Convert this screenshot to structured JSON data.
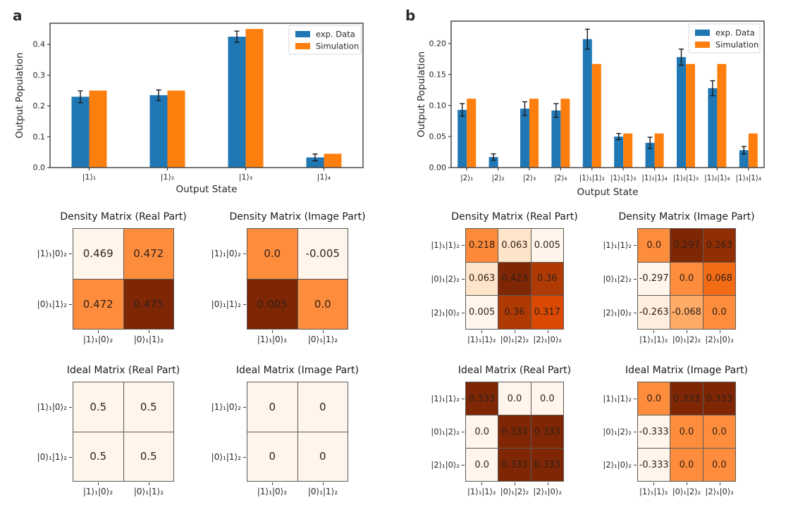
{
  "figure": {
    "background": "#ffffff"
  },
  "panel_labels": [
    "a",
    "b"
  ],
  "colors": {
    "exp_data": "#1f77b4",
    "simulation": "#ff7f0e",
    "error_bar": "#1a1a1a",
    "spine": "#3c3c3c",
    "cell_text": "#33201a",
    "matrix_grid_line": "#5a5a5a",
    "legend_border": "#d9d9d9",
    "colormap_low": "#fff5eb",
    "colormap_high": "#7f2704"
  },
  "chart_data": [
    {
      "id": "bars-a",
      "type": "bar",
      "panel": "a",
      "title": "",
      "xlabel": "Output State",
      "ylabel": "Output Population",
      "categories": [
        "|1⟩₁",
        "|1⟩₂",
        "|1⟩₃",
        "|1⟩₄"
      ],
      "series": [
        {
          "name": "exp. Data",
          "color": "#1f77b4",
          "values": [
            0.23,
            0.235,
            0.425,
            0.033
          ],
          "errors": [
            0.019,
            0.017,
            0.018,
            0.011
          ]
        },
        {
          "name": "Simulation",
          "color": "#ff7f0e",
          "values": [
            0.25,
            0.25,
            0.45,
            0.045
          ]
        }
      ],
      "ylim": [
        0,
        0.4686
      ],
      "yticks": [
        0.0,
        0.1,
        0.2,
        0.3,
        0.4
      ],
      "ytick_labels": [
        "0.0",
        "0.1",
        "0.2",
        "0.3",
        "0.4"
      ],
      "legend_position": "upper right",
      "grid": false
    },
    {
      "id": "bars-b",
      "type": "bar",
      "panel": "b",
      "title": "",
      "xlabel": "Output State",
      "ylabel": "Output Population",
      "categories": [
        "|2⟩₁",
        "|2⟩₂",
        "|2⟩₃",
        "|2⟩₄",
        "|1⟩₁|1⟩₂",
        "|1⟩₁|1⟩₃",
        "|1⟩₁|1⟩₄",
        "|1⟩₂|1⟩₃",
        "|1⟩₂|1⟩₄",
        "|1⟩₃|1⟩₄"
      ],
      "series": [
        {
          "name": "exp. Data",
          "color": "#1f77b4",
          "values": [
            0.093,
            0.017,
            0.095,
            0.092,
            0.207,
            0.05,
            0.04,
            0.178,
            0.128,
            0.028
          ],
          "errors": [
            0.01,
            0.005,
            0.011,
            0.011,
            0.016,
            0.005,
            0.009,
            0.013,
            0.012,
            0.006
          ]
        },
        {
          "name": "Simulation",
          "color": "#ff7f0e",
          "values": [
            0.111,
            0.0,
            0.111,
            0.111,
            0.167,
            0.055,
            0.055,
            0.167,
            0.167,
            0.055
          ]
        }
      ],
      "ylim": [
        0,
        0.236
      ],
      "yticks": [
        0.0,
        0.05,
        0.1,
        0.15,
        0.2
      ],
      "ytick_labels": [
        "0.00",
        "0.05",
        "0.10",
        "0.15",
        "0.20"
      ],
      "legend_position": "upper right",
      "grid": false
    },
    {
      "id": "a-density-real",
      "type": "heatmap",
      "panel": "a",
      "title": "Density Matrix (Real Part)",
      "colormap": "Oranges",
      "rows": [
        "|1⟩₁|0⟩₂",
        "|0⟩₁|1⟩₂"
      ],
      "cols": [
        "|1⟩₁|0⟩₂",
        "|0⟩₁|1⟩₂"
      ],
      "values": [
        [
          "0.469",
          "0.472"
        ],
        [
          "0.472",
          "0.475"
        ]
      ]
    },
    {
      "id": "a-density-imag",
      "type": "heatmap",
      "panel": "a",
      "title": "Density Matrix (Image Part)",
      "colormap": "Oranges",
      "rows": [
        "|1⟩₁|0⟩₂",
        "|0⟩₁|1⟩₂"
      ],
      "cols": [
        "|1⟩₁|0⟩₂",
        "|0⟩₁|1⟩₂"
      ],
      "values": [
        [
          "0.0",
          "-0.005"
        ],
        [
          "0.005",
          "0.0"
        ]
      ]
    },
    {
      "id": "a-ideal-real",
      "type": "heatmap",
      "panel": "a",
      "title": "Ideal Matrix (Real Part)",
      "colormap": "Oranges",
      "rows": [
        "|1⟩₁|0⟩₂",
        "|0⟩₁|1⟩₂"
      ],
      "cols": [
        "|1⟩₁|0⟩₂",
        "|0⟩₁|1⟩₂"
      ],
      "values": [
        [
          "0.5",
          "0.5"
        ],
        [
          "0.5",
          "0.5"
        ]
      ]
    },
    {
      "id": "a-ideal-imag",
      "type": "heatmap",
      "panel": "a",
      "title": "Ideal Matrix (Image Part)",
      "colormap": "Oranges",
      "rows": [
        "|1⟩₁|0⟩₂",
        "|0⟩₁|1⟩₂"
      ],
      "cols": [
        "|1⟩₁|0⟩₂",
        "|0⟩₁|1⟩₂"
      ],
      "values": [
        [
          "0",
          "0"
        ],
        [
          "0",
          "0"
        ]
      ]
    },
    {
      "id": "b-density-real",
      "type": "heatmap",
      "panel": "b",
      "title": "Density Matrix (Real Part)",
      "colormap": "Oranges",
      "rows": [
        "|1⟩₁|1⟩₂",
        "|0⟩₁|2⟩₂",
        "|2⟩₁|0⟩₂"
      ],
      "cols": [
        "|1⟩₁|1⟩₂",
        "|0⟩₁|2⟩₂",
        "|2⟩₁|0⟩₂"
      ],
      "values": [
        [
          "0.218",
          "0.063",
          "0.005"
        ],
        [
          "0.063",
          "0.423",
          "0.36"
        ],
        [
          "0.005",
          "0.36",
          "0.317"
        ]
      ]
    },
    {
      "id": "b-density-imag",
      "type": "heatmap",
      "panel": "b",
      "title": "Density Matrix (Image Part)",
      "colormap": "Oranges",
      "rows": [
        "|1⟩₁|1⟩₂",
        "|0⟩₁|2⟩₂",
        "|2⟩₁|0⟩₂"
      ],
      "cols": [
        "|1⟩₁|1⟩₂",
        "|0⟩₁|2⟩₂",
        "|2⟩₁|0⟩₂"
      ],
      "values": [
        [
          "0.0",
          "0.297",
          "0.263"
        ],
        [
          "-0.297",
          "0.0",
          "0.068"
        ],
        [
          "-0.263",
          "-0.068",
          "0.0"
        ]
      ]
    },
    {
      "id": "b-ideal-real",
      "type": "heatmap",
      "panel": "b",
      "title": "Ideal Matrix (Real Part)",
      "colormap": "Oranges",
      "rows": [
        "|1⟩₁|1⟩₂",
        "|0⟩₁|2⟩₂",
        "|2⟩₁|0⟩₂"
      ],
      "cols": [
        "|1⟩₁|1⟩₂",
        "|0⟩₁|2⟩₂",
        "|2⟩₁|0⟩₂"
      ],
      "values": [
        [
          "0.333",
          "0.0",
          "0.0"
        ],
        [
          "0.0",
          "0.333",
          "0.333"
        ],
        [
          "0.0",
          "0.333",
          "0.333"
        ]
      ]
    },
    {
      "id": "b-ideal-imag",
      "type": "heatmap",
      "panel": "b",
      "title": "Ideal Matrix (Image Part)",
      "colormap": "Oranges",
      "rows": [
        "|1⟩₁|1⟩₂",
        "|0⟩₁|2⟩₂",
        "|2⟩₁|0⟩₂"
      ],
      "cols": [
        "|1⟩₁|1⟩₂",
        "|0⟩₁|2⟩₂",
        "|2⟩₁|0⟩₂"
      ],
      "values": [
        [
          "0.0",
          "0.333",
          "0.333"
        ],
        [
          "-0.333",
          "0.0",
          "0.0"
        ],
        [
          "-0.333",
          "0.0",
          "0.0"
        ]
      ]
    }
  ]
}
